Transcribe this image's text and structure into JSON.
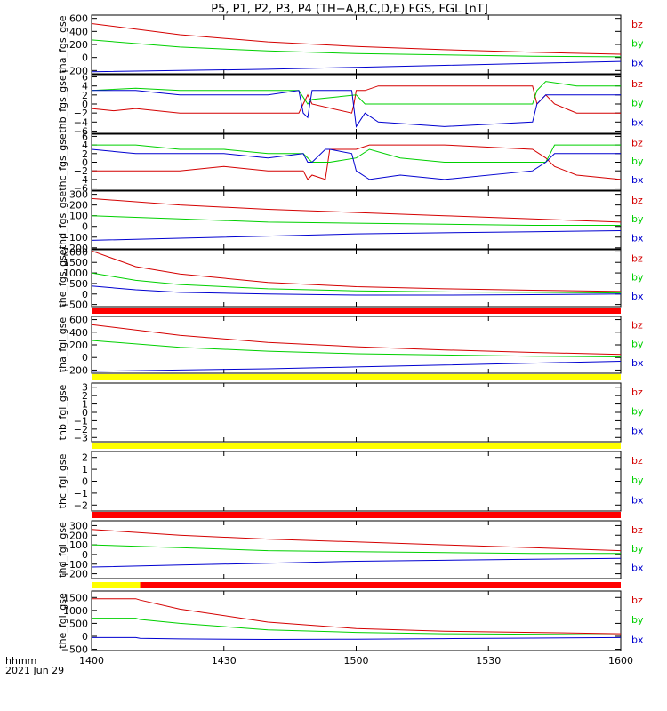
{
  "title": "P5, P1, P2, P3, P4 (TH−A,B,C,D,E) FGS, FGL [nT]",
  "footer": {
    "line1": "hhmm",
    "line2": "2021 Jun 29"
  },
  "x_ticks": [
    "1400",
    "1430",
    "1500",
    "1530",
    "1600"
  ],
  "x_range": [
    0,
    120
  ],
  "colors": {
    "bz": "#d40000",
    "by": "#00d000",
    "bx": "#0000d0",
    "yellow": "#ffff00",
    "red": "#ff0000",
    "axis": "#000000"
  },
  "legend": [
    "bz",
    "by",
    "bx"
  ],
  "chart_data": [
    {
      "type": "line",
      "ylabel": "tha_fgs_gse",
      "ylim": [
        -250,
        650
      ],
      "yticks": [
        600,
        400,
        200,
        0,
        -200
      ],
      "series": [
        {
          "name": "bz",
          "x": [
            0,
            20,
            40,
            60,
            80,
            100,
            120
          ],
          "y": [
            520,
            350,
            240,
            170,
            120,
            80,
            50
          ]
        },
        {
          "name": "by",
          "x": [
            0,
            20,
            40,
            60,
            80,
            100,
            120
          ],
          "y": [
            270,
            160,
            100,
            60,
            40,
            20,
            10
          ]
        },
        {
          "name": "bx",
          "x": [
            0,
            20,
            40,
            60,
            80,
            100,
            120
          ],
          "y": [
            -220,
            -200,
            -180,
            -150,
            -120,
            -90,
            -60
          ]
        }
      ]
    },
    {
      "type": "line",
      "ylabel": "thb_fgs_gse",
      "ylim": [
        -6.5,
        6.5
      ],
      "yticks": [
        6,
        4,
        2,
        0,
        -2,
        -4,
        -6
      ],
      "series": [
        {
          "name": "bz",
          "x": [
            0,
            5,
            10,
            20,
            30,
            40,
            47,
            48,
            49,
            50,
            59,
            59.5,
            60,
            62,
            65,
            80,
            100,
            101,
            103,
            105,
            110,
            120
          ],
          "y": [
            -1,
            -1.5,
            -1,
            -2,
            -2,
            -2,
            -2,
            0,
            2,
            0,
            -2,
            0,
            3,
            3,
            4,
            4,
            4,
            0,
            2,
            0,
            -2,
            -2
          ]
        },
        {
          "name": "by",
          "x": [
            0,
            10,
            20,
            30,
            40,
            47,
            49,
            50,
            60,
            62,
            65,
            80,
            100,
            101,
            103,
            110,
            120
          ],
          "y": [
            3,
            3.5,
            3,
            3,
            3,
            3,
            0,
            1,
            2,
            0,
            0,
            0,
            0,
            3,
            5,
            4,
            4
          ]
        },
        {
          "name": "bx",
          "x": [
            0,
            10,
            20,
            30,
            40,
            47,
            48,
            49,
            50,
            59,
            60,
            62,
            65,
            80,
            100,
            101,
            103,
            110,
            120
          ],
          "y": [
            3,
            3,
            2,
            2,
            2,
            3,
            -2,
            -3,
            3,
            3,
            -5,
            -2,
            -4,
            -5,
            -4,
            0,
            2,
            2,
            2
          ]
        }
      ]
    },
    {
      "type": "line",
      "ylabel": "thc_fgs_gse",
      "ylim": [
        -6.5,
        6.5
      ],
      "yticks": [
        6,
        4,
        2,
        0,
        -2,
        -4,
        -6
      ],
      "series": [
        {
          "name": "bz",
          "x": [
            0,
            10,
            20,
            30,
            40,
            48,
            49,
            50,
            53,
            54,
            59,
            60,
            63,
            70,
            80,
            100,
            103,
            105,
            110,
            120
          ],
          "y": [
            -2,
            -2,
            -2,
            -1,
            -2,
            -2,
            -4,
            -3,
            -4,
            3,
            3,
            3,
            4,
            4,
            4,
            3,
            1,
            -1,
            -3,
            -4
          ]
        },
        {
          "name": "by",
          "x": [
            0,
            10,
            20,
            30,
            40,
            48,
            50,
            54,
            60,
            63,
            70,
            80,
            100,
            103,
            105,
            110,
            120
          ],
          "y": [
            4,
            4,
            3,
            3,
            2,
            2,
            0,
            0,
            1,
            3,
            1,
            0,
            0,
            0,
            4,
            4,
            4
          ]
        },
        {
          "name": "bx",
          "x": [
            0,
            10,
            20,
            30,
            40,
            48,
            49,
            50,
            53,
            54,
            59,
            60,
            63,
            70,
            80,
            100,
            103,
            105,
            110,
            120
          ],
          "y": [
            3,
            2,
            2,
            2,
            1,
            2,
            0,
            0,
            3,
            3,
            2,
            -2,
            -4,
            -3,
            -4,
            -2,
            0,
            2,
            2,
            2
          ]
        }
      ]
    },
    {
      "type": "line",
      "ylabel": "thd_fgs_gse",
      "ylim": [
        -210,
        330
      ],
      "yticks": [
        300,
        200,
        100,
        0,
        -100,
        -200
      ],
      "series": [
        {
          "name": "bz",
          "x": [
            0,
            20,
            40,
            60,
            80,
            100,
            120
          ],
          "y": [
            260,
            200,
            160,
            130,
            100,
            70,
            40
          ]
        },
        {
          "name": "by",
          "x": [
            0,
            20,
            40,
            60,
            80,
            100,
            120
          ],
          "y": [
            100,
            70,
            40,
            30,
            20,
            10,
            10
          ]
        },
        {
          "name": "bx",
          "x": [
            0,
            20,
            40,
            60,
            80,
            100,
            120
          ],
          "y": [
            -130,
            -110,
            -90,
            -70,
            -60,
            -50,
            -40
          ]
        }
      ]
    },
    {
      "type": "line",
      "ylabel": "the_fgs_gse",
      "ylim": [
        -600,
        2100
      ],
      "yticks": [
        2000,
        1500,
        1000,
        500,
        0,
        -500
      ],
      "series": [
        {
          "name": "bz",
          "x": [
            0,
            10,
            20,
            40,
            60,
            80,
            100,
            120
          ],
          "y": [
            2050,
            1300,
            950,
            550,
            350,
            250,
            180,
            120
          ]
        },
        {
          "name": "by",
          "x": [
            0,
            10,
            20,
            40,
            60,
            80,
            100,
            120
          ],
          "y": [
            1000,
            650,
            450,
            250,
            150,
            100,
            80,
            50
          ]
        },
        {
          "name": "bx",
          "x": [
            0,
            10,
            20,
            40,
            60,
            80,
            100,
            120
          ],
          "y": [
            380,
            200,
            80,
            0,
            -50,
            -50,
            -30,
            0
          ]
        }
      ]
    },
    {
      "type": "line",
      "ylabel": "tha_fgl_gse",
      "ylim": [
        -250,
        650
      ],
      "yticks": [
        600,
        400,
        200,
        0,
        -200
      ],
      "series": [
        {
          "name": "bz",
          "x": [
            0,
            20,
            40,
            60,
            80,
            100,
            120
          ],
          "y": [
            520,
            350,
            240,
            170,
            120,
            80,
            50
          ]
        },
        {
          "name": "by",
          "x": [
            0,
            20,
            40,
            60,
            80,
            100,
            120
          ],
          "y": [
            270,
            160,
            100,
            60,
            40,
            20,
            10
          ]
        },
        {
          "name": "bx",
          "x": [
            0,
            20,
            40,
            60,
            80,
            100,
            120
          ],
          "y": [
            -220,
            -200,
            -180,
            -150,
            -120,
            -90,
            -60
          ]
        }
      ]
    },
    {
      "type": "line",
      "ylabel": "thb_fgl_gse",
      "ylim": [
        -3.5,
        3.5
      ],
      "yticks": [
        3,
        2,
        1,
        0,
        -1,
        -2,
        -3
      ],
      "series": []
    },
    {
      "type": "line",
      "ylabel": "thc_fgl_gse",
      "ylim": [
        -2.5,
        2.5
      ],
      "yticks": [
        2,
        1,
        0,
        -1,
        -2
      ],
      "series": []
    },
    {
      "type": "line",
      "ylabel": "thd_fgl_gse",
      "ylim": [
        -250,
        350
      ],
      "yticks": [
        300,
        200,
        100,
        0,
        -100,
        -200
      ],
      "series": [
        {
          "name": "bz",
          "x": [
            0,
            20,
            40,
            60,
            80,
            100,
            120
          ],
          "y": [
            260,
            200,
            160,
            130,
            100,
            70,
            40
          ]
        },
        {
          "name": "by",
          "x": [
            0,
            20,
            40,
            60,
            80,
            100,
            120
          ],
          "y": [
            100,
            70,
            40,
            30,
            20,
            10,
            10
          ]
        },
        {
          "name": "bx",
          "x": [
            0,
            20,
            40,
            60,
            80,
            100,
            120
          ],
          "y": [
            -130,
            -110,
            -90,
            -70,
            -60,
            -50,
            -40
          ]
        }
      ]
    },
    {
      "type": "line",
      "ylabel": "the_fgl_gse",
      "ylim": [
        -550,
        1750
      ],
      "yticks": [
        1500,
        1000,
        500,
        0,
        -500
      ],
      "series": [
        {
          "name": "bz",
          "x": [
            0,
            10,
            11,
            20,
            40,
            60,
            80,
            100,
            120
          ],
          "y": [
            1450,
            1450,
            1400,
            1050,
            550,
            300,
            200,
            150,
            100
          ]
        },
        {
          "name": "by",
          "x": [
            0,
            10,
            11,
            20,
            40,
            60,
            80,
            100,
            120
          ],
          "y": [
            700,
            700,
            650,
            500,
            250,
            150,
            100,
            80,
            50
          ]
        },
        {
          "name": "bx",
          "x": [
            0,
            10,
            11,
            20,
            40,
            60,
            80,
            100,
            120
          ],
          "y": [
            -50,
            -50,
            -80,
            -100,
            -120,
            -110,
            -90,
            -70,
            -50
          ]
        }
      ]
    }
  ]
}
